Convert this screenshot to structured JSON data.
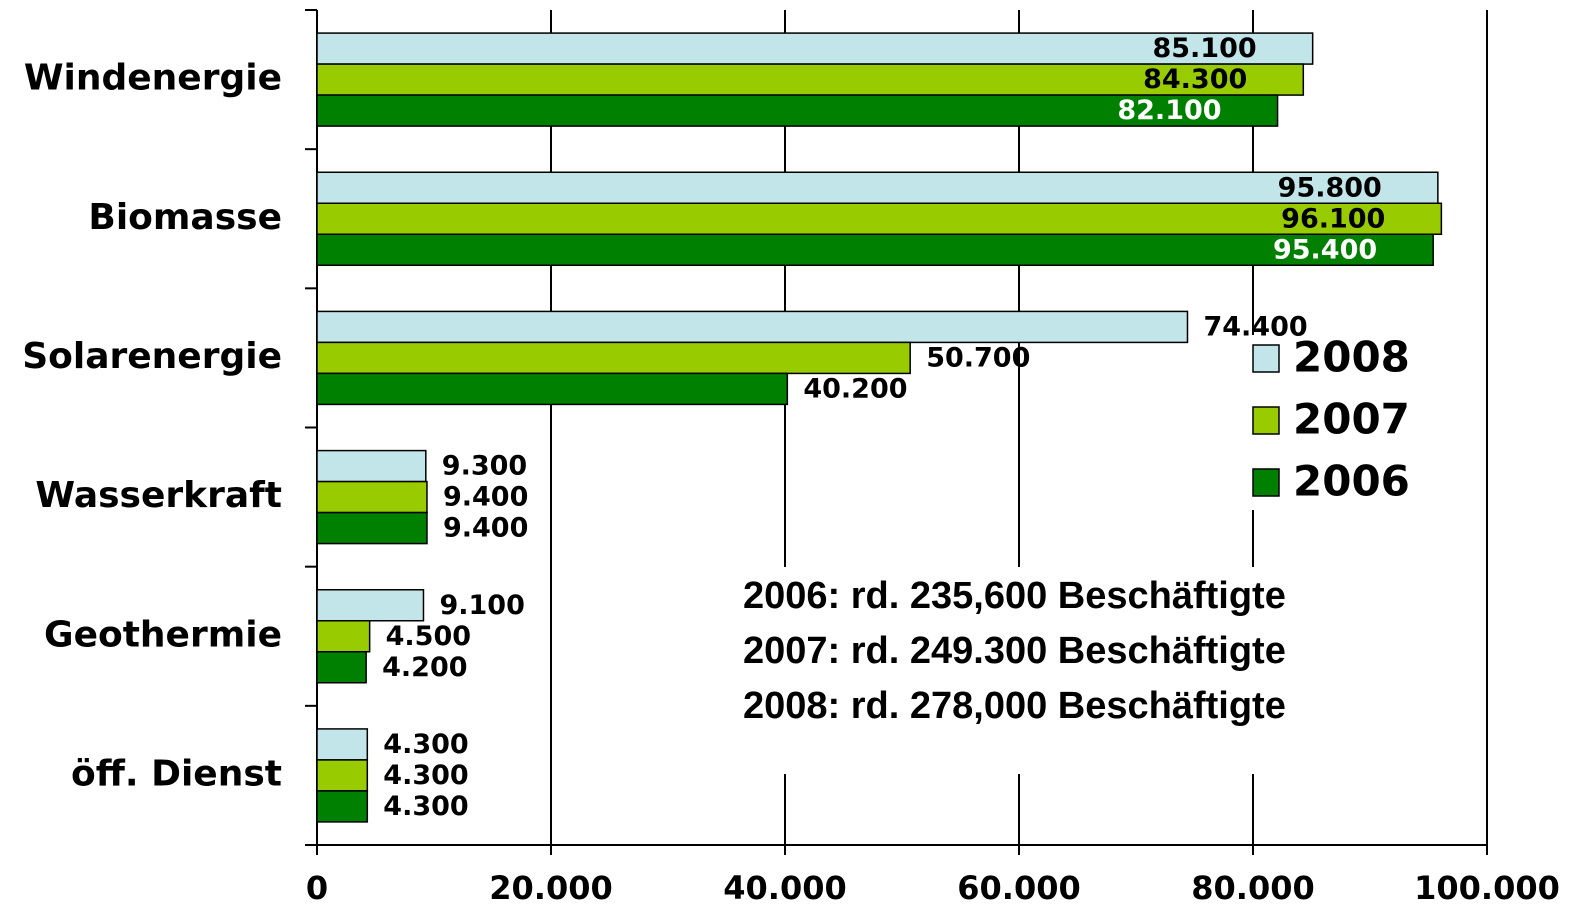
{
  "chart_data": {
    "type": "bar",
    "orientation": "horizontal",
    "categories": [
      "Windenergie",
      "Biomasse",
      "Solarenergie",
      "Wasserkraft",
      "Geothermie",
      "öff. Dienst"
    ],
    "series": [
      {
        "name": "2008",
        "color": "#c2e5e9",
        "values": [
          85100,
          95800,
          74400,
          9300,
          9100,
          4300
        ],
        "value_labels": [
          "85.100",
          "95.800",
          "74.400",
          "9.300",
          "9.100",
          "4.300"
        ]
      },
      {
        "name": "2007",
        "color": "#99cc00",
        "values": [
          84300,
          96100,
          50700,
          9400,
          4500,
          4300
        ],
        "value_labels": [
          "84.300",
          "96.100",
          "50.700",
          "9.400",
          "4.500",
          "4.300"
        ]
      },
      {
        "name": "2006",
        "color": "#008000",
        "values": [
          82100,
          95400,
          40200,
          9400,
          4200,
          4300
        ],
        "value_labels": [
          "82.100",
          "95.400",
          "40.200",
          "9.400",
          "4.200",
          "4.300"
        ]
      }
    ],
    "xlim": [
      0,
      100000
    ],
    "xticks": [
      0,
      {
        "value": 20000,
        "label": "20.000"
      },
      {
        "value": 40000,
        "label": "40.000"
      },
      {
        "value": 60000,
        "label": "60.000"
      },
      {
        "value": 80000,
        "label": "80.000"
      },
      {
        "value": 100000,
        "label": "100.000"
      }
    ],
    "grid": true,
    "legend": "right",
    "annotations": [
      "2006: rd. 235,600 Beschäftigte",
      "2007: rd. 249.300 Beschäftigte",
      "2008: rd. 278,000 Beschäftigte"
    ]
  }
}
